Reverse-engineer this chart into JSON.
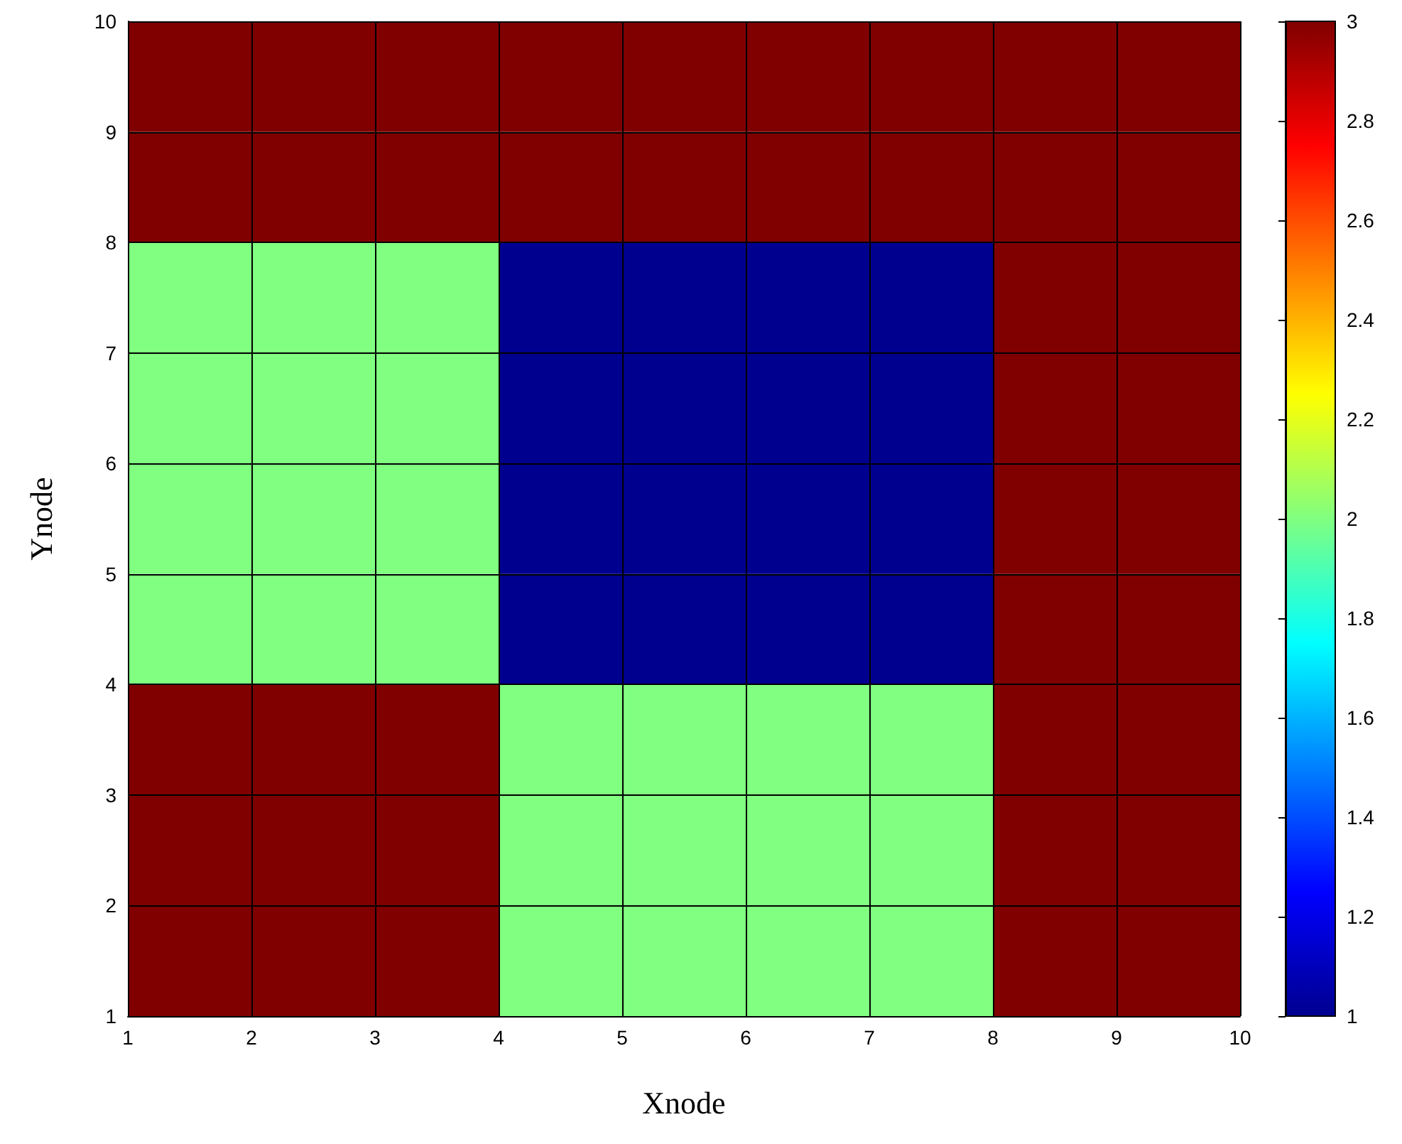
{
  "chart_data": {
    "type": "heatmap",
    "xlabel": "Xnode",
    "ylabel": "Ynode",
    "xlim": [
      1,
      10
    ],
    "ylim": [
      1,
      10
    ],
    "xticks": [
      1,
      2,
      3,
      4,
      5,
      6,
      7,
      8,
      9,
      10
    ],
    "yticks": [
      1,
      2,
      3,
      4,
      5,
      6,
      7,
      8,
      9,
      10
    ],
    "cells": [
      [
        3,
        3,
        3,
        3,
        3,
        3,
        3,
        3,
        3
      ],
      [
        3,
        3,
        3,
        3,
        3,
        3,
        3,
        3,
        3
      ],
      [
        2,
        2,
        2,
        1,
        1,
        1,
        1,
        3,
        3
      ],
      [
        2,
        2,
        2,
        1,
        1,
        1,
        1,
        3,
        3
      ],
      [
        2,
        2,
        2,
        1,
        1,
        1,
        1,
        3,
        3
      ],
      [
        2,
        2,
        2,
        1,
        1,
        1,
        1,
        3,
        3
      ],
      [
        3,
        3,
        3,
        2,
        2,
        2,
        2,
        3,
        3
      ],
      [
        3,
        3,
        3,
        2,
        2,
        2,
        2,
        3,
        3
      ],
      [
        3,
        3,
        3,
        2,
        2,
        2,
        2,
        3,
        3
      ]
    ],
    "clim": [
      1,
      3
    ],
    "cticks": [
      1,
      1.2,
      1.4,
      1.6,
      1.8,
      2,
      2.2,
      2.4,
      2.6,
      2.8,
      3
    ],
    "grid": true
  }
}
